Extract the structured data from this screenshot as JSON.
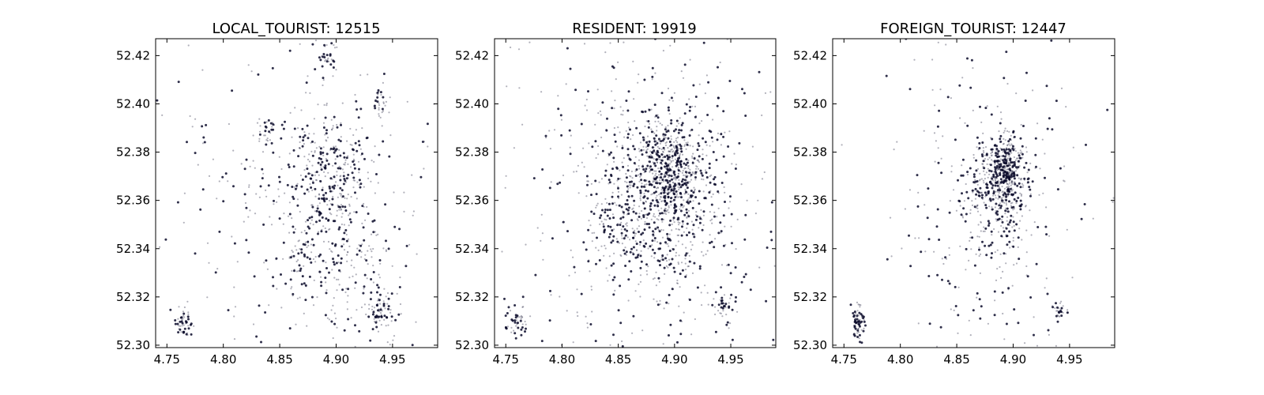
{
  "chart_data": [
    {
      "type": "scatter",
      "title": "LOCAL_TOURIST: 12515",
      "xlim": [
        4.74,
        4.99
      ],
      "ylim": [
        52.299,
        52.427
      ],
      "xticks": [
        "4.75",
        "4.80",
        "4.85",
        "4.90",
        "4.95"
      ],
      "yticks": [
        "52.30",
        "52.32",
        "52.34",
        "52.36",
        "52.38",
        "52.40",
        "52.42"
      ],
      "grid": false,
      "point_color": "#0b0b2a",
      "point_count": 12515,
      "clusters": [
        {
          "x": 4.895,
          "y": 52.375,
          "sx": 0.018,
          "sy": 0.012,
          "w": 0.2
        },
        {
          "x": 4.885,
          "y": 52.363,
          "sx": 0.012,
          "sy": 0.008,
          "w": 0.06
        },
        {
          "x": 4.765,
          "y": 52.31,
          "sx": 0.004,
          "sy": 0.003,
          "w": 0.06
        },
        {
          "x": 4.94,
          "y": 52.314,
          "sx": 0.006,
          "sy": 0.004,
          "w": 0.07
        },
        {
          "x": 4.87,
          "y": 52.338,
          "sx": 0.006,
          "sy": 0.005,
          "w": 0.04
        },
        {
          "x": 4.838,
          "y": 52.388,
          "sx": 0.004,
          "sy": 0.003,
          "w": 0.03
        },
        {
          "x": 4.94,
          "y": 52.401,
          "sx": 0.004,
          "sy": 0.003,
          "w": 0.03
        },
        {
          "x": 4.893,
          "y": 52.42,
          "sx": 0.005,
          "sy": 0.004,
          "w": 0.03
        },
        {
          "x": 4.91,
          "y": 52.34,
          "sx": 0.025,
          "sy": 0.02,
          "w": 0.2
        },
        {
          "x": 4.865,
          "y": 52.36,
          "sx": 0.06,
          "sy": 0.04,
          "w": 0.28
        }
      ]
    },
    {
      "type": "scatter",
      "title": "RESIDENT: 19919",
      "xlim": [
        4.74,
        4.99
      ],
      "ylim": [
        52.299,
        52.427
      ],
      "xticks": [
        "4.75",
        "4.80",
        "4.85",
        "4.90",
        "4.95"
      ],
      "yticks": [
        "52.30",
        "52.32",
        "52.34",
        "52.36",
        "52.38",
        "52.40",
        "52.42"
      ],
      "grid": false,
      "point_color": "#0b0b2a",
      "point_count": 19919,
      "clusters": [
        {
          "x": 4.895,
          "y": 52.372,
          "sx": 0.012,
          "sy": 0.009,
          "w": 0.2
        },
        {
          "x": 4.885,
          "y": 52.36,
          "sx": 0.03,
          "sy": 0.018,
          "w": 0.45
        },
        {
          "x": 4.76,
          "y": 52.31,
          "sx": 0.005,
          "sy": 0.003,
          "w": 0.03
        },
        {
          "x": 4.945,
          "y": 52.315,
          "sx": 0.005,
          "sy": 0.004,
          "w": 0.03
        },
        {
          "x": 4.88,
          "y": 52.36,
          "sx": 0.06,
          "sy": 0.04,
          "w": 0.29
        }
      ]
    },
    {
      "type": "scatter",
      "title": "FOREIGN_TOURIST: 12447",
      "xlim": [
        4.74,
        4.99
      ],
      "ylim": [
        52.299,
        52.427
      ],
      "xticks": [
        "4.75",
        "4.80",
        "4.85",
        "4.90",
        "4.95"
      ],
      "yticks": [
        "52.30",
        "52.32",
        "52.34",
        "52.36",
        "52.38",
        "52.40",
        "52.42"
      ],
      "grid": false,
      "point_color": "#0b0b2a",
      "point_count": 12447,
      "clusters": [
        {
          "x": 4.893,
          "y": 52.373,
          "sx": 0.008,
          "sy": 0.007,
          "w": 0.35
        },
        {
          "x": 4.885,
          "y": 52.362,
          "sx": 0.016,
          "sy": 0.012,
          "w": 0.25
        },
        {
          "x": 4.763,
          "y": 52.31,
          "sx": 0.003,
          "sy": 0.004,
          "w": 0.07
        },
        {
          "x": 4.94,
          "y": 52.314,
          "sx": 0.004,
          "sy": 0.002,
          "w": 0.03
        },
        {
          "x": 4.88,
          "y": 52.355,
          "sx": 0.045,
          "sy": 0.035,
          "w": 0.3
        }
      ]
    }
  ]
}
